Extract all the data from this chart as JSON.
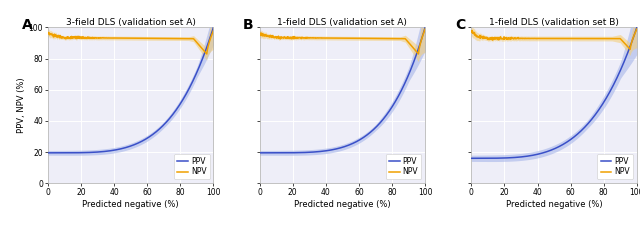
{
  "panels": [
    {
      "label": "A",
      "title": "3-field DLS (validation set A)",
      "ppv_start": 19.5,
      "ppv_curvature": 4.2,
      "npv_start": 96,
      "npv_plateau": 93.5,
      "npv_drop_start": 88,
      "npv_drop_end": 83,
      "npv_spike_end": 98,
      "ppv_ci_base": 1.5,
      "ppv_ci_end": 5,
      "npv_ci_start": 2.5,
      "npv_ci_base": 1.2,
      "npv_ci_end": 4
    },
    {
      "label": "B",
      "title": "1-field DLS (validation set A)",
      "ppv_start": 19.5,
      "ppv_curvature": 4.5,
      "npv_start": 96,
      "npv_plateau": 93.5,
      "npv_drop_start": 88,
      "npv_drop_end": 83,
      "npv_spike_end": 99,
      "ppv_ci_base": 1.5,
      "ppv_ci_end": 7,
      "npv_ci_start": 2.5,
      "npv_ci_base": 1.2,
      "npv_ci_end": 5
    },
    {
      "label": "C",
      "title": "1-field DLS (validation set B)",
      "ppv_start": 16,
      "ppv_curvature": 3.8,
      "npv_start": 98,
      "npv_plateau": 93,
      "npv_drop_start": 90,
      "npv_drop_end": 86,
      "npv_spike_end": 99,
      "ppv_ci_base": 2.0,
      "ppv_ci_end": 8,
      "npv_ci_start": 3.5,
      "npv_ci_base": 1.5,
      "npv_ci_end": 4
    }
  ],
  "ppv_color": "#3a50c8",
  "npv_color": "#f0a000",
  "ppv_ci_color": "#a0b0e8",
  "npv_ci_color": "#f5cc70",
  "ppv_ci_alpha": 0.55,
  "npv_ci_alpha": 0.55,
  "xlabel": "Predicted negative (%)",
  "ylabel": "PPV, NPV (%)",
  "ylim": [
    0,
    100
  ],
  "xlim": [
    0,
    100
  ],
  "xticks": [
    0,
    20,
    40,
    60,
    80,
    100
  ],
  "yticks": [
    0,
    20,
    40,
    60,
    80,
    100
  ],
  "bg_color": "#eeeef8",
  "fig_bg": "#ffffff",
  "grid_color": "#ffffff",
  "tick_fontsize": 5.5,
  "label_fontsize": 6.0,
  "title_fontsize": 6.5,
  "panel_label_fontsize": 10,
  "legend_fontsize": 5.5,
  "line_width": 1.1
}
